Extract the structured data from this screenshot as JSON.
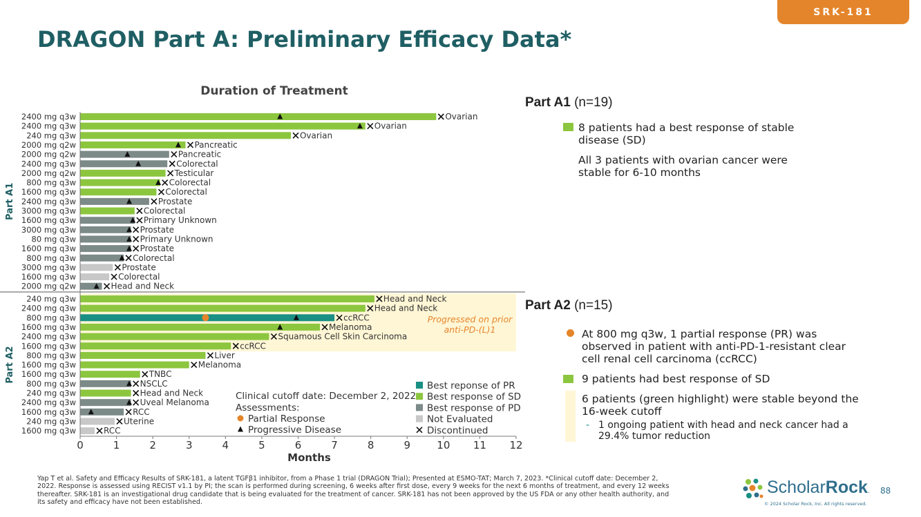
{
  "header": {
    "tag": "SRK-181",
    "title": "DRAGON Part A: Preliminary Efficacy Data*"
  },
  "colors": {
    "title": "#1F5F64",
    "tag": "#E5852B",
    "pr": "#1A8F84",
    "sd": "#8CC63F",
    "pd": "#7C8A88",
    "ne": "#C8C8C8",
    "partial_response": "#E5852B",
    "highlight": "#FFF6D5",
    "logo_blue": "#2F6E8C"
  },
  "chart_data": {
    "type": "bar",
    "orientation": "horizontal",
    "title": "Duration of Treatment",
    "xlabel": "Months",
    "xlim": [
      0,
      12
    ],
    "xticks": [
      0,
      1,
      2,
      3,
      4,
      5,
      6,
      7,
      8,
      9,
      10,
      11,
      12
    ],
    "groups": [
      {
        "name": "Part A1",
        "rows": [
          {
            "dose": "2400 mg q3w",
            "tumor": "Ovarian",
            "months": 9.8,
            "response": "SD",
            "pd": 5.5,
            "pr": null,
            "x": 9.8
          },
          {
            "dose": "2400 mg q3w",
            "tumor": "Ovarian",
            "months": 7.85,
            "response": "SD",
            "pd": 7.7,
            "pr": null,
            "x": 7.85
          },
          {
            "dose": "240 mg q3w",
            "tumor": "Ovarian",
            "months": 5.8,
            "response": "SD",
            "pd": null,
            "pr": null,
            "x": 5.8
          },
          {
            "dose": "2000 mg q2w",
            "tumor": "Pancreatic",
            "months": 2.9,
            "response": "SD",
            "pd": 2.7,
            "pr": null,
            "x": 2.9
          },
          {
            "dose": "2000 mg q2w",
            "tumor": "Pancreatic",
            "months": 2.45,
            "response": "PD",
            "pd": 1.3,
            "pr": null,
            "x": 2.45
          },
          {
            "dose": "2400 mg q3w",
            "tumor": "Colorectal",
            "months": 2.4,
            "response": "PD",
            "pd": 1.6,
            "pr": null,
            "x": 2.4
          },
          {
            "dose": "2000 mg q2w",
            "tumor": "Testicular",
            "months": 2.35,
            "response": "SD",
            "pd": null,
            "pr": null,
            "x": 2.35
          },
          {
            "dose": "800 mg q3w",
            "tumor": "Colorectal",
            "months": 2.2,
            "response": "SD",
            "pd": 2.15,
            "pr": null,
            "x": 2.2
          },
          {
            "dose": "1600 mg q3w",
            "tumor": "Colorectal",
            "months": 2.1,
            "response": "SD",
            "pd": null,
            "pr": null,
            "x": 2.1
          },
          {
            "dose": "2400 mg q3w",
            "tumor": "Prostate",
            "months": 1.9,
            "response": "PD",
            "pd": 1.35,
            "pr": null,
            "x": 1.9
          },
          {
            "dose": "3000 mg q3w",
            "tumor": "Colorectal",
            "months": 1.5,
            "response": "SD",
            "pd": null,
            "pr": null,
            "x": 1.5
          },
          {
            "dose": "1600 mg q3w",
            "tumor": "Primary Unknown",
            "months": 1.5,
            "response": "PD",
            "pd": 1.45,
            "pr": null,
            "x": 1.5
          },
          {
            "dose": "3000 mg q3w",
            "tumor": "Prostate",
            "months": 1.4,
            "response": "PD",
            "pd": 1.35,
            "pr": null,
            "x": 1.4
          },
          {
            "dose": "80 mg q3w",
            "tumor": "Primary Unknown",
            "months": 1.4,
            "response": "PD",
            "pd": 1.35,
            "pr": null,
            "x": 1.4
          },
          {
            "dose": "1600 mg q3w",
            "tumor": "Prostate",
            "months": 1.4,
            "response": "PD",
            "pd": 1.35,
            "pr": null,
            "x": 1.4
          },
          {
            "dose": "800 mg q3w",
            "tumor": "Colorectal",
            "months": 1.2,
            "response": "PD",
            "pd": 1.15,
            "pr": null,
            "x": 1.2
          },
          {
            "dose": "3000 mg q3w",
            "tumor": "Prostate",
            "months": 0.9,
            "response": "NE",
            "pd": null,
            "pr": null,
            "x": 0.9
          },
          {
            "dose": "1600 mg q3w",
            "tumor": "Colorectal",
            "months": 0.8,
            "response": "NE",
            "pd": null,
            "pr": null,
            "x": 0.8
          },
          {
            "dose": "2000 mg q2w",
            "tumor": "Head and Neck",
            "months": 0.6,
            "response": "PD",
            "pd": 0.45,
            "pr": null,
            "x": 0.6
          }
        ]
      },
      {
        "name": "Part A2",
        "rows": [
          {
            "dose": "240 mg q3w",
            "tumor": "Head and Neck",
            "months": 8.1,
            "response": "SD",
            "pd": null,
            "pr": null,
            "x": 8.1
          },
          {
            "dose": "2400 mg q3w",
            "tumor": "Head and Neck",
            "months": 7.85,
            "response": "SD",
            "pd": null,
            "pr": null,
            "x": 7.85
          },
          {
            "dose": "800 mg q3w",
            "tumor": "ccRCC",
            "months": 7.0,
            "response": "PR",
            "pd": 5.95,
            "pr": 3.45,
            "x": 7.0
          },
          {
            "dose": "1600 mg q3w",
            "tumor": "Melanoma",
            "months": 6.6,
            "response": "SD",
            "pd": 5.5,
            "pr": null,
            "x": 6.6
          },
          {
            "dose": "2400 mg q3w",
            "tumor": "Squamous Cell Skin Carcinoma",
            "months": 5.2,
            "response": "SD",
            "pd": null,
            "pr": null,
            "x": 5.2
          },
          {
            "dose": "1600 mg q3w",
            "tumor": "ccRCC",
            "months": 4.15,
            "response": "SD",
            "pd": null,
            "pr": null,
            "x": 4.15
          },
          {
            "dose": "800 mg q3w",
            "tumor": "Liver",
            "months": 3.45,
            "response": "SD",
            "pd": null,
            "pr": null,
            "x": 3.45
          },
          {
            "dose": "1600 mg q3w",
            "tumor": "Melanoma",
            "months": 3.0,
            "response": "SD",
            "pd": null,
            "pr": null,
            "x": 3.0
          },
          {
            "dose": "1600 mg q3w",
            "tumor": "TNBC",
            "months": 1.65,
            "response": "SD",
            "pd": null,
            "pr": null,
            "x": 1.65
          },
          {
            "dose": "800 mg q3w",
            "tumor": "NSCLC",
            "months": 1.4,
            "response": "PD",
            "pd": 1.35,
            "pr": null,
            "x": 1.4
          },
          {
            "dose": "240 mg q3w",
            "tumor": "Head and Neck",
            "months": 1.4,
            "response": "SD",
            "pd": null,
            "pr": null,
            "x": 1.4
          },
          {
            "dose": "2400 mg q3w",
            "tumor": "Uveal Melanoma",
            "months": 1.4,
            "response": "PD",
            "pd": 1.35,
            "pr": null,
            "x": 1.4
          },
          {
            "dose": "1600 mg q3w",
            "tumor": "RCC",
            "months": 1.2,
            "response": "PD",
            "pd": 0.3,
            "pr": null,
            "x": 1.2
          },
          {
            "dose": "240 mg q3w",
            "tumor": "Uterine",
            "months": 0.95,
            "response": "NE",
            "pd": null,
            "pr": null,
            "x": 0.95
          },
          {
            "dose": "1600 mg q3w",
            "tumor": "RCC",
            "months": 0.4,
            "response": "NE",
            "pd": null,
            "pr": null,
            "x": 0.4
          }
        ]
      }
    ],
    "annotation": "Progressed on prior anti-PD-(L)1",
    "annotation_lines": [
      "Progressed on prior",
      "anti-PD-(L)1"
    ],
    "highlight_rows": {
      "group": "Part A2",
      "first": 0,
      "count": 6,
      "xmax": 12
    },
    "legend_responses": [
      {
        "key": "PR",
        "label": "Best reponse of PR"
      },
      {
        "key": "SD",
        "label": "Best response of SD"
      },
      {
        "key": "PD",
        "label": "Best response of PD"
      },
      {
        "key": "NE",
        "label": "Not Evaluated"
      },
      {
        "key": "X",
        "label": "Discontinued"
      }
    ],
    "legend_assessments": {
      "cutoff": "Clinical cutoff date: December 2, 2022",
      "heading": "Assessments:",
      "items": [
        {
          "key": "dot",
          "label": "Partial Response"
        },
        {
          "key": "tri",
          "label": "Progressive Disease"
        }
      ]
    }
  },
  "right_panel": {
    "a1": {
      "heading_bold": "Part A1",
      "heading_rest": " (n=19)",
      "sd_line1": "8 patients had a best response of stable",
      "sd_line2": "disease (SD)",
      "ovarian_line1": "All 3 patients with ovarian cancer were",
      "ovarian_line2": "stable for 6-10 months"
    },
    "a2": {
      "heading_bold": "Part A2",
      "heading_rest": " (n=15)",
      "pr_line1": "At 800 mg q3w, 1 partial response (PR) was",
      "pr_line2": "observed in patient with anti-PD-1-resistant clear",
      "pr_line3": "cell renal cell carcinoma (ccRCC)",
      "sd": "9 patients had best response of SD",
      "stable_line1": "6 patients (green highlight) were stable beyond the",
      "stable_line2": "16-week cutoff",
      "sub_dash": "-",
      "sub_line1": "1 ongoing patient with head and neck cancer had a",
      "sub_line2": "29.4% tumor reduction"
    }
  },
  "footer": {
    "line1": "Yap T et al. Safety and Efficacy Results of SRK-181, a latent TGFβ1 inhibitor, from a Phase 1 trial (DRAGON Trial); Presented at ESMO-TAT; March 7, 2023. *Clinical cutoff date: December 2,",
    "line2": "2022. Response is assessed using RECIST v1.1 by PI; the scan is performed during screening, 6 weeks after first dose, every 9 weeks for the next 6 months of treatment, and every 12 weeks",
    "line3": "thereafter. SRK-181 is an investigational drug candidate that is being evaluated for the treatment of cancer. SRK-181 has not been approved by the US FDA or any other health authority, and",
    "line4": "its safety and efficacy have not been established."
  },
  "logo": {
    "name_light": "Scholar",
    "name_bold": "Rock",
    "tm": ".",
    "copyright": "© 2024 Scholar Rock, Inc. All rights reserved.",
    "page_number": "88"
  }
}
